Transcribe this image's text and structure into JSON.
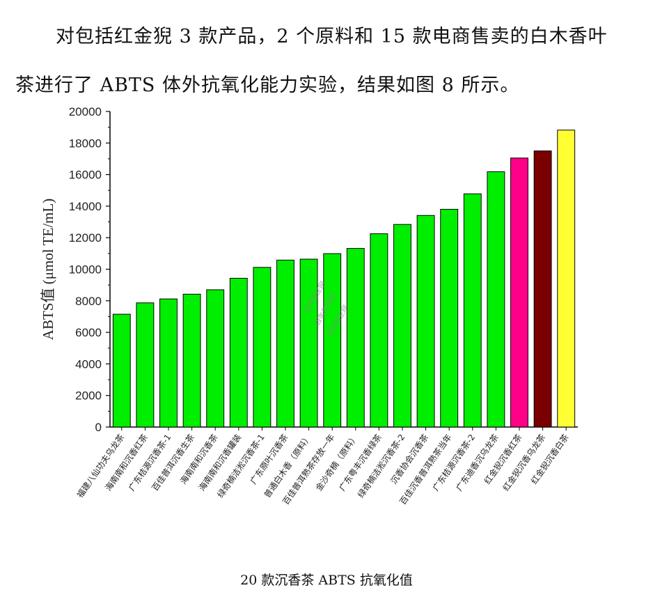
{
  "paragraph": {
    "line1": "对包括红金猊 3 款产品，2 个原料和 15 款电商售卖的白木香叶",
    "line2": "茶进行了 ABTS 体外抗氧化能力实验，结果如图 8 所示。"
  },
  "caption": "20 款沉香茶 ABTS 抗氧化值",
  "watermark": "百年养生网",
  "chart_data": {
    "type": "bar",
    "ylabel": "ABTS值 (μmol TE/mL)",
    "xlabel": "",
    "ylim": [
      0,
      20000
    ],
    "yticks": [
      0,
      2000,
      4000,
      6000,
      8000,
      10000,
      12000,
      14000,
      16000,
      18000,
      20000
    ],
    "categories": [
      "福建八仙功夫乌龙茶",
      "海南南和沉香红茶",
      "广东桔源沉香茶-1",
      "百佳普洱沉香生茶",
      "海南南和沉香茶",
      "海南南和沉香罐装",
      "绿奇楠洁淞沉香茶-1",
      "广东原叶沉香茶",
      "普通白木香（原料）",
      "百佳普洱熟茶存放一年",
      "金沙奇楠（原料）",
      "广东粤丰沉香绿茶",
      "绿奇楠洁淞沉香茶-2",
      "沉香协会沉香茶",
      "百佳沉香普洱熟茶当年",
      "广东桔源沉香茶-2",
      "广东迪香沉乌龙茶",
      "红金猊沉香红茶",
      "红金猊沉香乌龙茶",
      "红金猊沉香白茶"
    ],
    "values": [
      7150,
      7870,
      8120,
      8420,
      8700,
      9430,
      10120,
      10580,
      10640,
      10990,
      11320,
      12250,
      12840,
      13410,
      13800,
      14780,
      16180,
      17050,
      17500,
      18820
    ],
    "colors": [
      "#00ee00",
      "#00ee00",
      "#00ee00",
      "#00ee00",
      "#00ee00",
      "#00ee00",
      "#00ee00",
      "#00ee00",
      "#00ee00",
      "#00ee00",
      "#00ee00",
      "#00ee00",
      "#00ee00",
      "#00ee00",
      "#00ee00",
      "#00ee00",
      "#00ee00",
      "#ff0088",
      "#7a0000",
      "#ffff33"
    ],
    "grid": false,
    "legend": "none"
  }
}
